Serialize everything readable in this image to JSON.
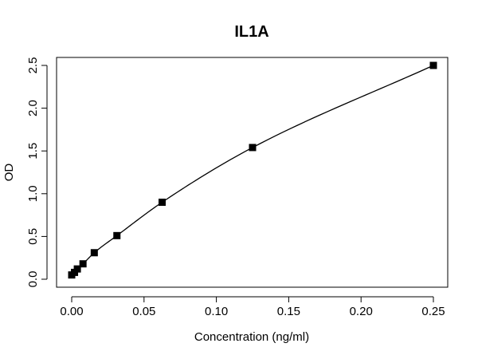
{
  "chart_data": {
    "type": "scatter",
    "title": "IL1A",
    "xlabel": "Concentration (ng/ml)",
    "ylabel": "OD",
    "xlim": [
      0,
      0.25
    ],
    "ylim": [
      0,
      2.5
    ],
    "x_ticks": [
      "0.00",
      "0.05",
      "0.10",
      "0.15",
      "0.20",
      "0.25"
    ],
    "y_ticks": [
      "0.0",
      "0.5",
      "1.0",
      "1.5",
      "2.0",
      "2.5"
    ],
    "grid": false,
    "marker": "filled-square",
    "fitted_curve": true,
    "series": [
      {
        "x": [
          0.0,
          0.00195,
          0.0039,
          0.0078,
          0.0156,
          0.03125,
          0.0625,
          0.125,
          0.25
        ],
        "y": [
          0.05,
          0.08,
          0.12,
          0.18,
          0.31,
          0.51,
          0.9,
          1.54,
          2.5
        ]
      }
    ]
  }
}
